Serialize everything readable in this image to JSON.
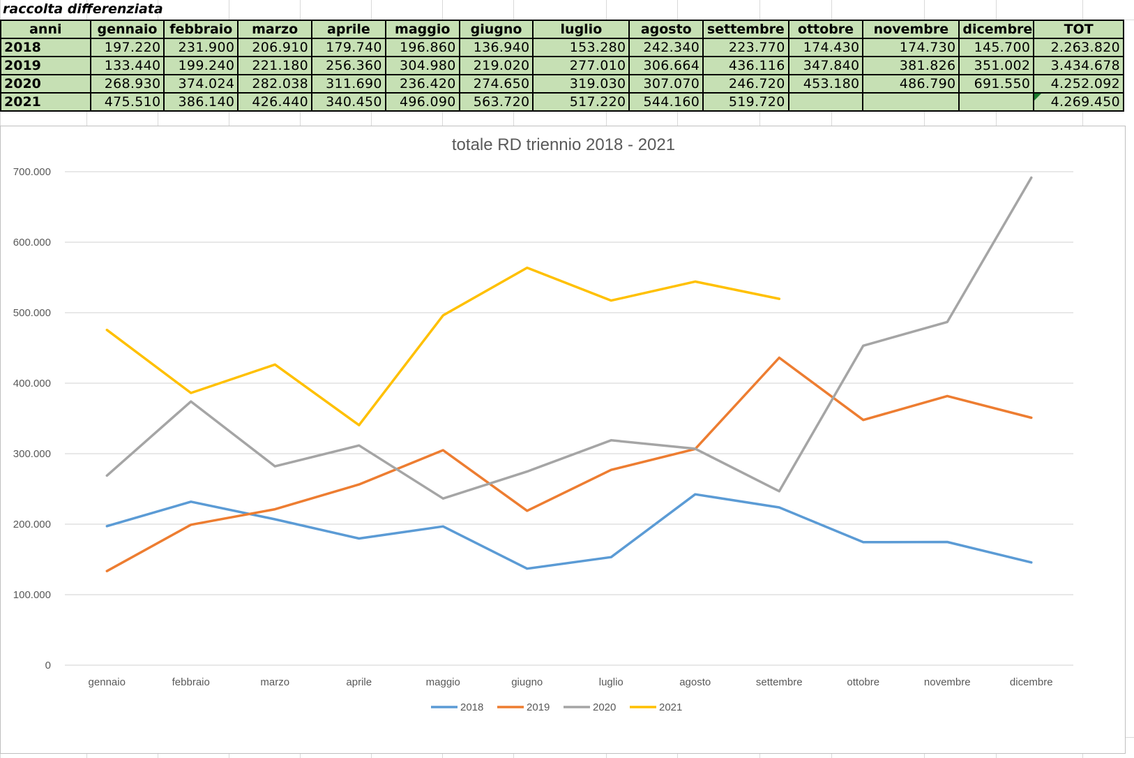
{
  "caption": "raccolta differenziata",
  "table": {
    "headers": [
      "anni",
      "gennaio",
      "febbraio",
      "marzo",
      "aprile",
      "maggio",
      "giugno",
      "luglio",
      "agosto",
      "settembre",
      "ottobre",
      "novembre",
      "dicembre",
      "TOT"
    ],
    "rows": [
      [
        "2018",
        "197.220",
        "231.900",
        "206.910",
        "179.740",
        "196.860",
        "136.940",
        "153.280",
        "242.340",
        "223.770",
        "174.430",
        "174.730",
        "145.700",
        "2.263.820"
      ],
      [
        "2019",
        "133.440",
        "199.240",
        "221.180",
        "256.360",
        "304.980",
        "219.020",
        "277.010",
        "306.664",
        "436.116",
        "347.840",
        "381.826",
        "351.002",
        "3.434.678"
      ],
      [
        "2020",
        "268.930",
        "374.024",
        "282.038",
        "311.690",
        "236.420",
        "274.650",
        "319.030",
        "307.070",
        "246.720",
        "453.180",
        "486.790",
        "691.550",
        "4.252.092"
      ],
      [
        "2021",
        "475.510",
        "386.140",
        "426.440",
        "340.450",
        "496.090",
        "563.720",
        "517.220",
        "544.160",
        "519.720",
        "",
        "",
        "",
        "4.269.450"
      ]
    ]
  },
  "chart_data": {
    "type": "line",
    "title": "totale RD triennio 2018 - 2021",
    "xlabel": "",
    "ylabel": "",
    "categories": [
      "gennaio",
      "febbraio",
      "marzo",
      "aprile",
      "maggio",
      "giugno",
      "luglio",
      "agosto",
      "settembre",
      "ottobre",
      "novembre",
      "dicembre"
    ],
    "ylim": [
      0,
      700000
    ],
    "yticks": [
      0,
      100000,
      200000,
      300000,
      400000,
      500000,
      600000,
      700000
    ],
    "ytick_labels": [
      "0",
      "100.000",
      "200.000",
      "300.000",
      "400.000",
      "500.000",
      "600.000",
      "700.000"
    ],
    "grid": true,
    "legend_position": "bottom",
    "series": [
      {
        "name": "2018",
        "color": "#5b9bd5",
        "values": [
          197220,
          231900,
          206910,
          179740,
          196860,
          136940,
          153280,
          242340,
          223770,
          174430,
          174730,
          145700
        ]
      },
      {
        "name": "2019",
        "color": "#ed7d31",
        "values": [
          133440,
          199240,
          221180,
          256360,
          304980,
          219020,
          277010,
          306664,
          436116,
          347840,
          381826,
          351002
        ]
      },
      {
        "name": "2020",
        "color": "#a5a5a5",
        "values": [
          268930,
          374024,
          282038,
          311690,
          236420,
          274650,
          319030,
          307070,
          246720,
          453180,
          486790,
          691550
        ]
      },
      {
        "name": "2021",
        "color": "#ffc000",
        "values": [
          475510,
          386140,
          426440,
          340450,
          496090,
          563720,
          517220,
          544160,
          519720,
          null,
          null,
          null
        ]
      }
    ]
  }
}
